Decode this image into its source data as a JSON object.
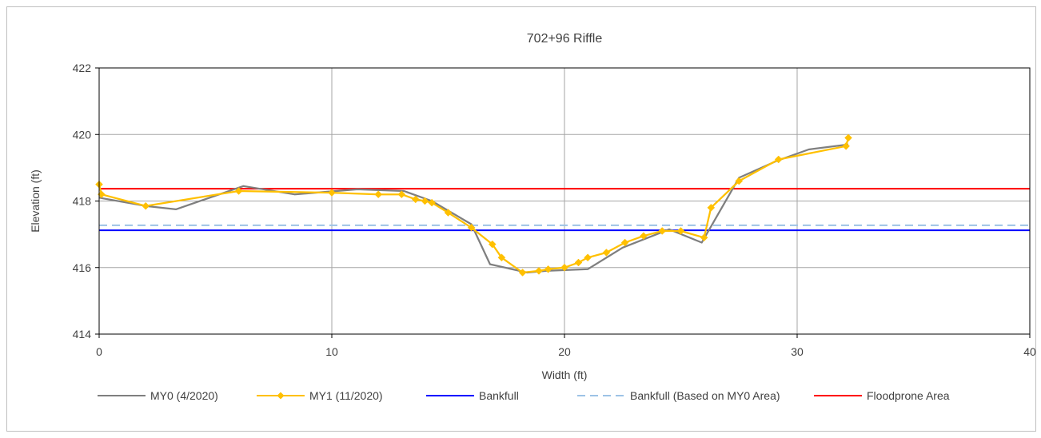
{
  "chart_data": {
    "type": "line",
    "title": "702+96 Riffle",
    "xlabel": "Width (ft)",
    "ylabel": "Elevation (ft)",
    "xlim": [
      0,
      40
    ],
    "ylim": [
      414,
      422
    ],
    "xticks": [
      "0",
      "10",
      "20",
      "30",
      "40"
    ],
    "yticks": [
      "414",
      "416",
      "418",
      "420",
      "422"
    ],
    "grid": true,
    "legend_position": "bottom",
    "series": [
      {
        "name": "MY0 (4/2020)",
        "color": "#7f7f7f",
        "style": "solid",
        "markers": false,
        "x": [
          0,
          2,
          3.3,
          6.2,
          8.4,
          11.1,
          13.1,
          14.3,
          16,
          16.8,
          18.4,
          19.2,
          21,
          22.5,
          24.5,
          25.9,
          27.5,
          29.1,
          30.5,
          32.2
        ],
        "y": [
          418.1,
          417.85,
          417.75,
          418.45,
          418.2,
          418.35,
          418.3,
          418.0,
          417.3,
          416.1,
          415.85,
          415.9,
          415.95,
          416.6,
          417.15,
          416.75,
          418.7,
          419.2,
          419.55,
          419.7
        ]
      },
      {
        "name": "MY1 (11/2020)",
        "color": "#ffc000",
        "style": "solid",
        "markers": true,
        "x": [
          0,
          0.1,
          2,
          6,
          10,
          12,
          13,
          13.6,
          14,
          14.3,
          15,
          16,
          16.9,
          17.3,
          18.2,
          18.9,
          19.3,
          20,
          20.6,
          21,
          21.8,
          22.6,
          23.4,
          24.2,
          25,
          26,
          26.3,
          27.5,
          29.2,
          32.1,
          32.2
        ],
        "y": [
          418.5,
          418.2,
          417.85,
          418.3,
          418.25,
          418.2,
          418.2,
          418.05,
          418.0,
          417.95,
          417.65,
          417.2,
          416.7,
          416.3,
          415.85,
          415.9,
          415.95,
          416.0,
          416.15,
          416.3,
          416.45,
          416.75,
          416.95,
          417.1,
          417.1,
          416.9,
          417.8,
          418.6,
          419.25,
          419.65,
          419.9
        ]
      },
      {
        "name": "Bankfull",
        "color": "#0000ff",
        "style": "solid",
        "markers": false,
        "x": [
          0,
          40
        ],
        "y": [
          417.12,
          417.12
        ]
      },
      {
        "name": "Bankfull (Based on MY0 Area)",
        "color": "#9dc3e6",
        "style": "dashed",
        "markers": false,
        "x": [
          0,
          40
        ],
        "y": [
          417.27,
          417.27
        ]
      },
      {
        "name": "Floodprone Area",
        "color": "#ff0000",
        "style": "solid",
        "markers": false,
        "x": [
          0,
          40
        ],
        "y": [
          418.37,
          418.37
        ]
      }
    ]
  }
}
